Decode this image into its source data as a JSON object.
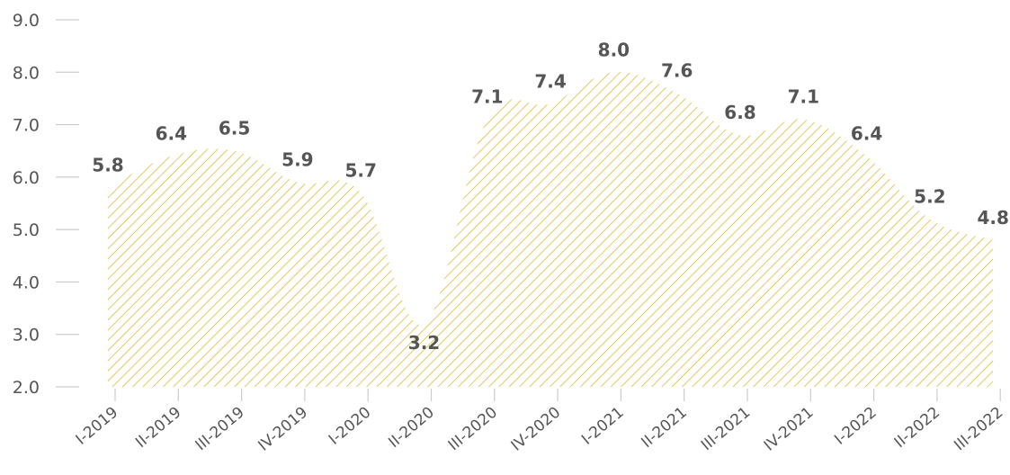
{
  "chart_data": {
    "type": "area",
    "title": "",
    "xlabel": "",
    "ylabel": "",
    "ylim": [
      2.0,
      9.0
    ],
    "yticks": [
      "9.0",
      "8.0",
      "7.0",
      "6.0",
      "5.0",
      "4.0",
      "3.0",
      "2.0"
    ],
    "categories": [
      "I-2019",
      "II-2019",
      "III-2019",
      "IV-2019",
      "I-2020",
      "II-2020",
      "III-2020",
      "IV-2020",
      "I-2021",
      "II-2021",
      "III-2021",
      "IV-2021",
      "I-2022",
      "II-2022",
      "III-2022"
    ],
    "values": [
      5.8,
      6.4,
      6.5,
      5.9,
      5.7,
      3.2,
      7.1,
      7.4,
      8.0,
      7.6,
      6.8,
      7.1,
      6.4,
      5.2,
      4.8
    ],
    "value_labels": [
      "5.8",
      "6.4",
      "6.5",
      "5.9",
      "5.7",
      "3.2",
      "7.1",
      "7.4",
      "8.0",
      "7.6",
      "6.8",
      "7.1",
      "6.4",
      "5.2",
      "4.8"
    ],
    "grid": false,
    "legend": "none",
    "fill_pattern": "diagonal-hatch",
    "colors": {
      "hatch": "#d9b21f",
      "text": "#555555",
      "axis": "#cccccc"
    }
  }
}
